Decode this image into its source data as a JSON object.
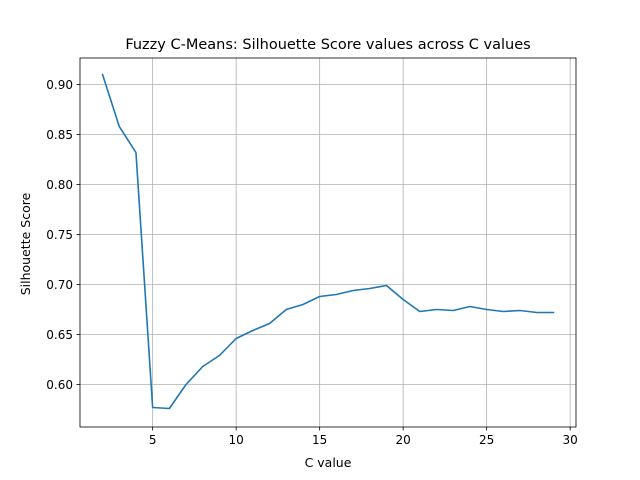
{
  "chart_data": {
    "type": "line",
    "title": "Fuzzy C-Means: Silhouette Score values across C values",
    "xlabel": "C value",
    "ylabel": "Silhouette Score",
    "xlim": [
      0.65,
      30.35
    ],
    "ylim": [
      0.5575,
      0.9265
    ],
    "xticks": [
      5,
      10,
      15,
      20,
      25,
      30
    ],
    "yticks": [
      0.6,
      0.65,
      0.7,
      0.75,
      0.8,
      0.85,
      0.9
    ],
    "xtick_labels": [
      "5",
      "10",
      "15",
      "20",
      "25",
      "30"
    ],
    "ytick_labels": [
      "0.60",
      "0.65",
      "0.70",
      "0.75",
      "0.80",
      "0.85",
      "0.90"
    ],
    "grid": true,
    "series": [
      {
        "color": "#1f77b4",
        "x": [
          2,
          3,
          4,
          5,
          6,
          7,
          8,
          9,
          10,
          11,
          12,
          13,
          14,
          15,
          16,
          17,
          18,
          19,
          20,
          21,
          22,
          23,
          24,
          25,
          26,
          27,
          28,
          29
        ],
        "y": [
          0.91,
          0.858,
          0.832,
          0.577,
          0.576,
          0.6,
          0.618,
          0.629,
          0.646,
          0.654,
          0.661,
          0.675,
          0.68,
          0.688,
          0.69,
          0.694,
          0.696,
          0.699,
          0.685,
          0.673,
          0.675,
          0.674,
          0.678,
          0.675,
          0.673,
          0.674,
          0.672,
          0.672
        ]
      }
    ]
  }
}
